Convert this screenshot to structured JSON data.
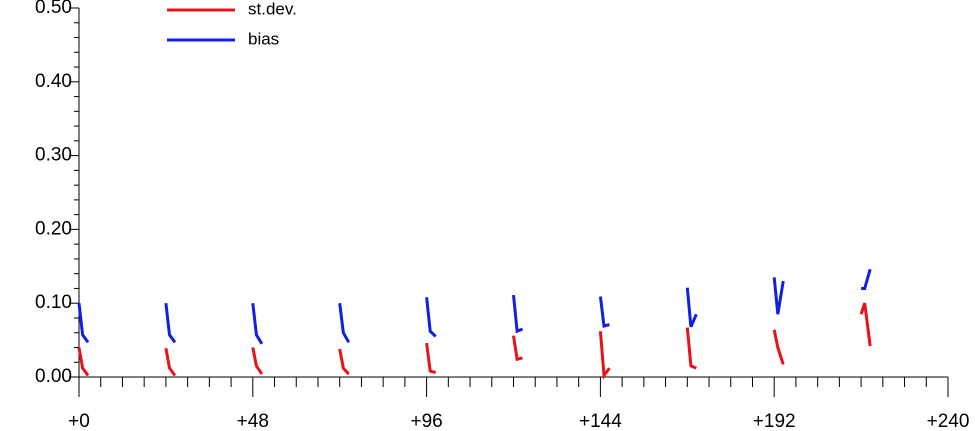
{
  "chart_data": {
    "type": "line",
    "x": [
      0,
      1,
      2.5,
      12,
      24,
      25,
      26.5,
      36,
      48,
      49,
      50.5,
      60,
      72,
      73,
      74.5,
      84,
      96,
      97,
      98.5,
      108,
      120,
      121,
      122.5,
      132,
      144,
      145,
      146.5,
      156,
      168,
      169,
      170.5,
      180,
      192,
      193,
      194.5,
      204,
      216,
      217,
      218.5
    ],
    "series": [
      {
        "name": "st.dev.",
        "color": "#e8121a",
        "values": [
          0.04,
          0.012,
          0.002,
          null,
          0.039,
          0.012,
          0.002,
          null,
          0.04,
          0.015,
          0.004,
          null,
          0.038,
          0.012,
          0.004,
          null,
          0.046,
          0.008,
          0.006,
          null,
          0.056,
          0.024,
          0.026,
          null,
          0.062,
          0.002,
          0.012,
          null,
          0.067,
          0.015,
          0.012,
          null,
          0.064,
          0.04,
          0.017,
          null,
          0.085,
          0.1,
          0.042
        ]
      },
      {
        "name": "bias",
        "color": "#1020e0",
        "values": [
          0.1,
          0.057,
          0.047,
          null,
          0.1,
          0.057,
          0.047,
          null,
          0.1,
          0.057,
          0.045,
          null,
          0.1,
          0.06,
          0.047,
          null,
          0.108,
          0.062,
          0.055,
          null,
          0.111,
          0.062,
          0.065,
          null,
          0.109,
          0.069,
          0.071,
          null,
          0.121,
          0.068,
          0.085,
          null,
          0.135,
          0.085,
          0.13,
          null,
          0.12,
          0.12,
          0.146
        ]
      }
    ],
    "xlim": [
      0,
      240
    ],
    "xticks": [
      {
        "value": 0,
        "label": "+0"
      },
      {
        "value": 48,
        "label": "+48"
      },
      {
        "value": 96,
        "label": "+96"
      },
      {
        "value": 144,
        "label": "+144"
      },
      {
        "value": 192,
        "label": "+192"
      },
      {
        "value": 240,
        "label": "+240"
      }
    ],
    "xminorticks": [
      6,
      12,
      18,
      24,
      30,
      36,
      42,
      54,
      60,
      66,
      72,
      78,
      84,
      90,
      102,
      108,
      114,
      120,
      126,
      132,
      138,
      150,
      156,
      162,
      168,
      174,
      180,
      186,
      198,
      204,
      210,
      216,
      222,
      228,
      234
    ],
    "ylim": [
      0,
      0.5
    ],
    "yticks": [
      {
        "value": 0,
        "label": "0.00"
      },
      {
        "value": 0.1,
        "label": "0.10"
      },
      {
        "value": 0.2,
        "label": "0.20"
      },
      {
        "value": 0.3,
        "label": "0.30"
      },
      {
        "value": 0.4,
        "label": "0.40"
      },
      {
        "value": 0.5,
        "label": "0.50"
      }
    ],
    "yminorticks": [
      0.02,
      0.04,
      0.06,
      0.08,
      0.12,
      0.14,
      0.16,
      0.18,
      0.22,
      0.24,
      0.26,
      0.28,
      0.32,
      0.34,
      0.36,
      0.38,
      0.42,
      0.44,
      0.46,
      0.48
    ],
    "legend": "top-left",
    "grid": false
  }
}
